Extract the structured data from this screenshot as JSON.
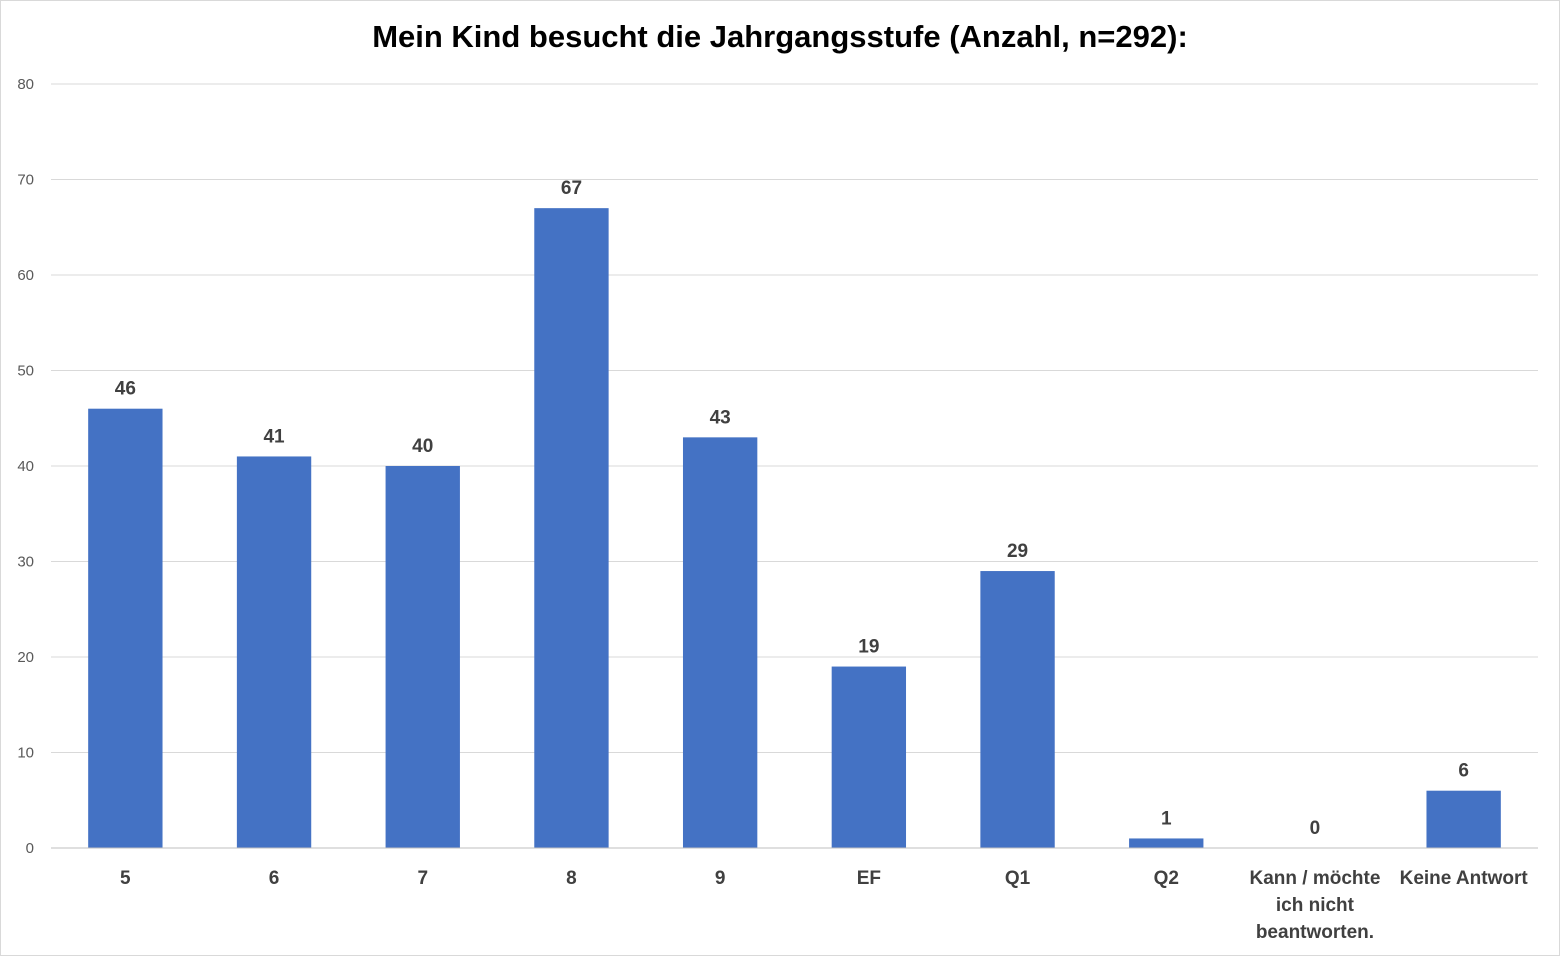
{
  "chart_data": {
    "type": "bar",
    "title": "Mein Kind besucht die Jahrgangsstufe (Anzahl, n=292):",
    "categories": [
      "5",
      "6",
      "7",
      "8",
      "9",
      "EF",
      "Q1",
      "Q2",
      "Kann / möchte ich nicht beantworten.",
      "Keine Antwort"
    ],
    "category_lines": [
      [
        "5"
      ],
      [
        "6"
      ],
      [
        "7"
      ],
      [
        "8"
      ],
      [
        "9"
      ],
      [
        "EF"
      ],
      [
        "Q1"
      ],
      [
        "Q2"
      ],
      [
        "Kann / möchte",
        "ich nicht",
        "beantworten."
      ],
      [
        "Keine Antwort"
      ]
    ],
    "values": [
      46,
      41,
      40,
      67,
      43,
      19,
      29,
      1,
      0,
      6
    ],
    "ylim": [
      0,
      80
    ],
    "yticks": [
      0,
      10,
      20,
      30,
      40,
      50,
      60,
      70,
      80
    ],
    "xlabel": "",
    "ylabel": "",
    "grid": true,
    "bar_color": "#4472C4",
    "data_labels": true
  }
}
